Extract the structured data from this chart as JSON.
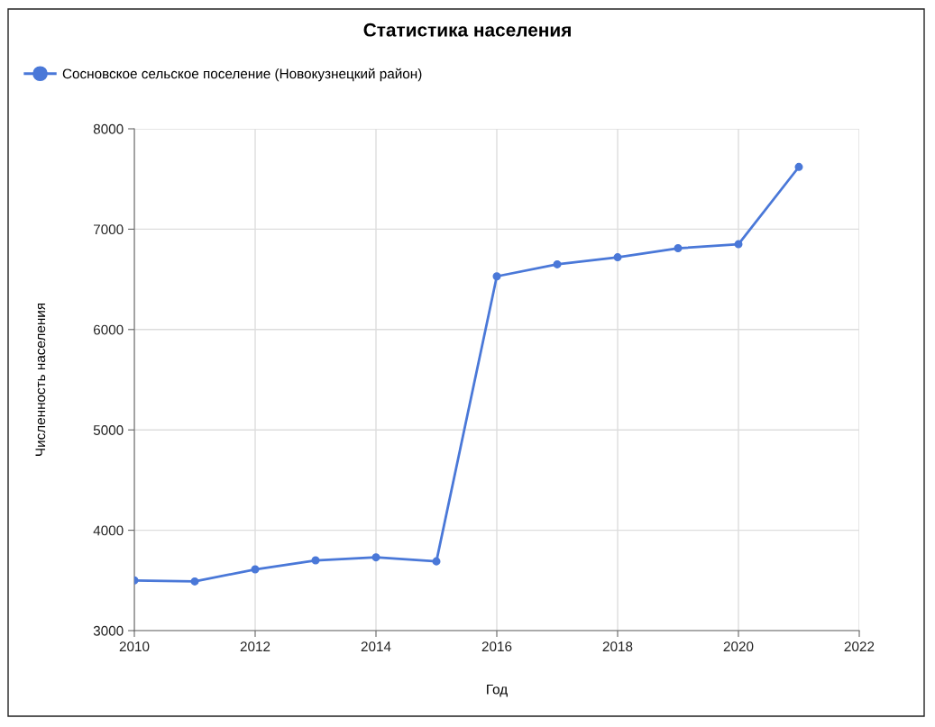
{
  "chart_data": {
    "type": "line",
    "title": "Статистика населения",
    "xlabel": "Год",
    "ylabel": "Численность населения",
    "x": [
      2010,
      2011,
      2012,
      2013,
      2014,
      2015,
      2016,
      2017,
      2018,
      2019,
      2020,
      2021
    ],
    "series": [
      {
        "name": "Сосновское сельское поселение (Новокузнецкий район)",
        "color": "#4a78d8",
        "values": [
          3500,
          3490,
          3610,
          3700,
          3730,
          3690,
          6530,
          6650,
          6720,
          6810,
          6850,
          7620
        ]
      }
    ],
    "xlim": [
      2010,
      2022
    ],
    "xticks": [
      2010,
      2012,
      2014,
      2016,
      2018,
      2020,
      2022
    ],
    "ylim": [
      3000,
      8000
    ],
    "yticks": [
      3000,
      4000,
      5000,
      6000,
      7000,
      8000
    ],
    "grid": true,
    "legend": "top left",
    "marker": "circle",
    "line_style": "solid"
  }
}
